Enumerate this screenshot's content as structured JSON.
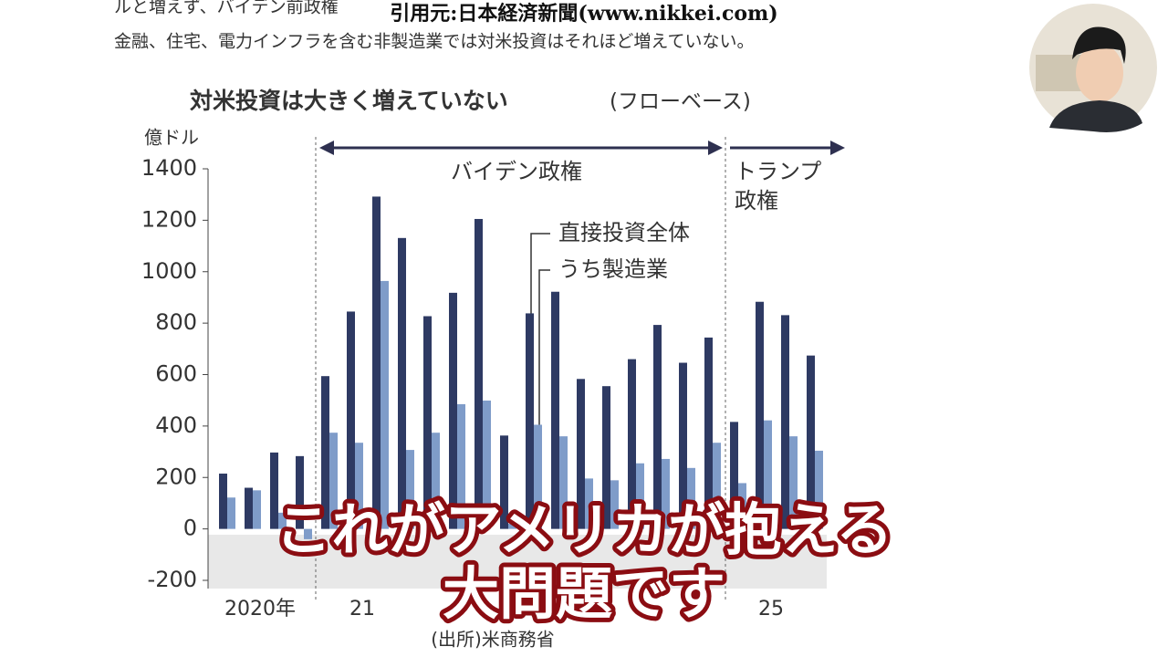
{
  "article": {
    "lines": [
      "ルと増えず、バイデン前政権",
      "金融、住宅、電力インフラを含む非製造業では対米投資はそれほど増えていない。"
    ]
  },
  "citation": "引用元:日本経済新聞(www.nikkei.com)",
  "chart_data": {
    "type": "bar",
    "title": "対米投資は大きく増えていない",
    "subtitle": "(フローベース)",
    "y_label": "億ドル",
    "source": "(出所)米商務省",
    "periods": [
      "バイデン政権",
      "トランプ",
      "政権"
    ],
    "categories": [
      "2020年",
      null,
      null,
      null,
      "21",
      null,
      null,
      null,
      null,
      null,
      null,
      null,
      null,
      null,
      null,
      null,
      null,
      null,
      null,
      null,
      "25",
      null,
      null,
      null
    ],
    "series": [
      {
        "name": "直接投資全体",
        "color": "#2e3a63",
        "values": [
          215,
          160,
          297,
          283,
          594,
          845,
          1292,
          1131,
          827,
          918,
          1205,
          363,
          838,
          922,
          583,
          555,
          660,
          793,
          646,
          744,
          416,
          883,
          831,
          674
        ]
      },
      {
        "name": "うち製造業",
        "color": "#7f9cc9",
        "values": [
          122,
          150,
          63,
          -40,
          374,
          335,
          964,
          307,
          374,
          485,
          499,
          20,
          405,
          360,
          196,
          189,
          255,
          272,
          237,
          335,
          178,
          422,
          360,
          304
        ]
      }
    ],
    "ylim": [
      -200,
      1400
    ],
    "yticks": [
      -200,
      0,
      200,
      400,
      600,
      800,
      1000,
      1200,
      1400
    ]
  },
  "caption": {
    "lines": [
      "これがアメリカが抱える",
      "大問題です"
    ]
  }
}
